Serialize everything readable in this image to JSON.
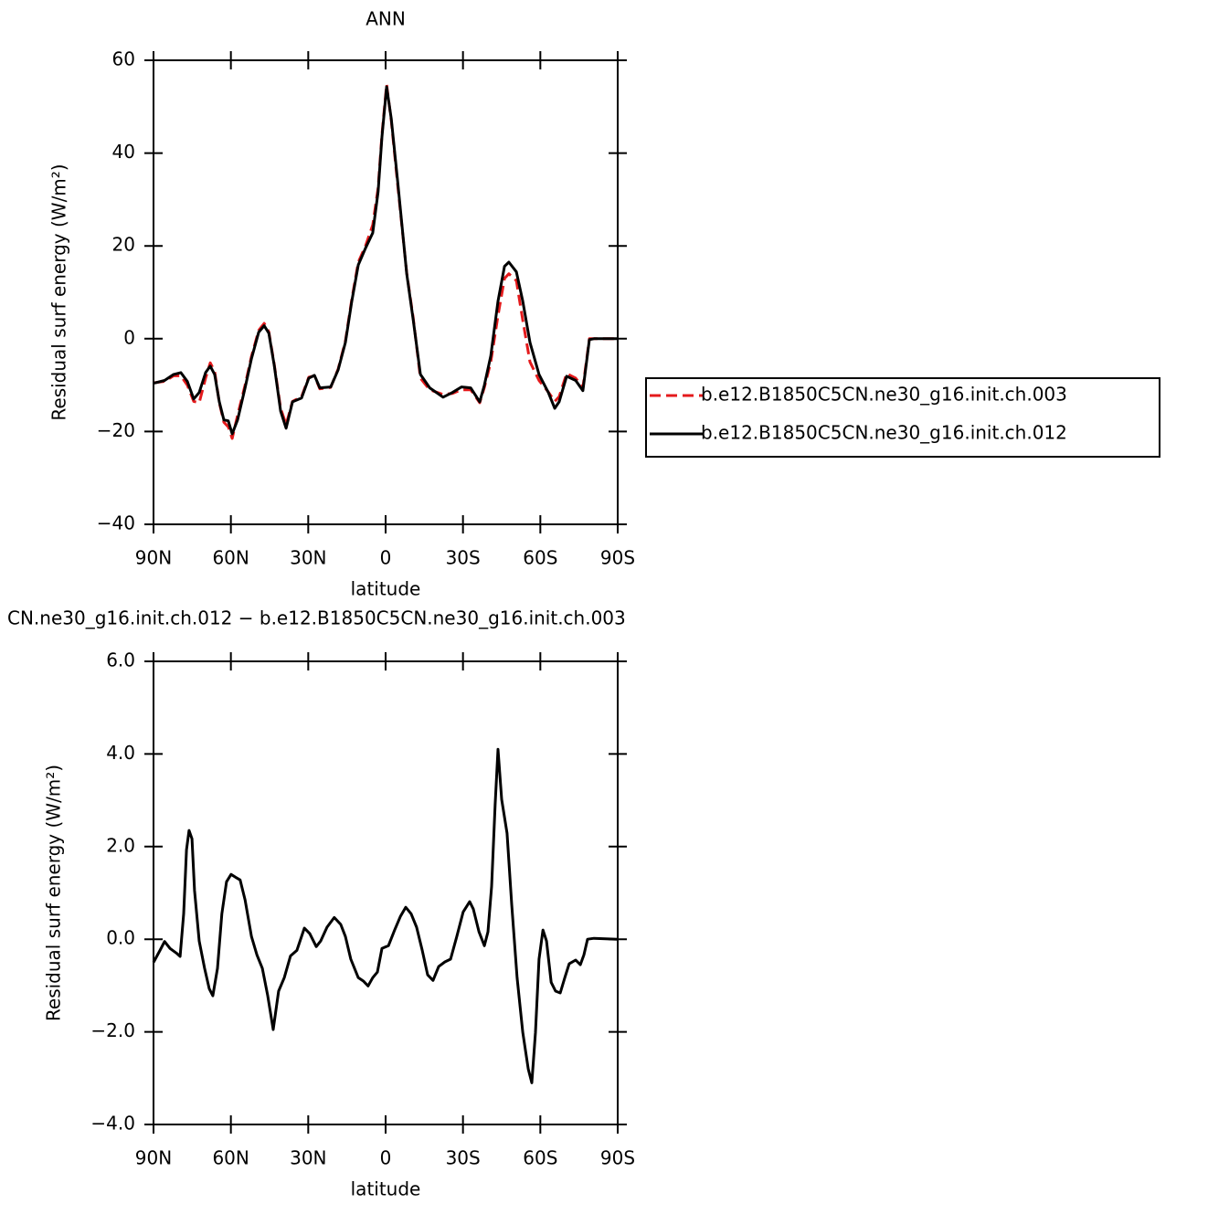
{
  "chart_data": [
    {
      "type": "line",
      "title": "ANN",
      "xlabel": "latitude",
      "ylabel": "Residual surf energy (W/m²)",
      "x": [
        90,
        85.7,
        82.2,
        79.4,
        76.9,
        74.4,
        72.3,
        69.8,
        68,
        66.3,
        64.5,
        62.7,
        61,
        59.5,
        57.4,
        54.5,
        52,
        49.2,
        47.1,
        45.3,
        43.2,
        40.7,
        38.6,
        36.1,
        32.6,
        29.8,
        27.6,
        25.5,
        21.3,
        18.4,
        15.6,
        13.1,
        10.6,
        7.8,
        5,
        2.9,
        1.4,
        -0.4,
        -2.2,
        -4.7,
        -8.2,
        -10.7,
        -13.5,
        -17.1,
        -22.3,
        -25.9,
        -29.4,
        -33,
        -36.5,
        -38.3,
        -40.8,
        -43.6,
        -46.1,
        -47.8,
        -50.7,
        -53.2,
        -56,
        -59.5,
        -63.1,
        -65.6,
        -67.3,
        -70.2,
        -73.7,
        -76.5,
        -79,
        -80.8,
        -90
      ],
      "series": [
        {
          "name": "b.e12.B1850C5CN.ne30_g16.init.ch.003",
          "color": "#e41a1c",
          "dashed": true,
          "values": [
            -9.5,
            -9.2,
            -8,
            -8,
            -10,
            -13.5,
            -13.8,
            -8.5,
            -5.2,
            -7,
            -13.8,
            -18,
            -19,
            -21.5,
            -16.5,
            -10,
            -3.8,
            1.8,
            3.3,
            1.5,
            -5.5,
            -15,
            -18.5,
            -13.5,
            -12.5,
            -8.3,
            -8,
            -10.8,
            -10.5,
            -6.5,
            -0.5,
            8.5,
            16.5,
            20,
            24.5,
            32.5,
            44,
            54.8,
            47,
            33,
            14.2,
            4.5,
            -8.5,
            -11,
            -12,
            -11.8,
            -11,
            -11,
            -13.8,
            -10.5,
            -5,
            5,
            13,
            14,
            12.5,
            4,
            -5,
            -9,
            -11.5,
            -13.5,
            -12.5,
            -7.5,
            -8.5,
            -10.5,
            0,
            0,
            0
          ]
        },
        {
          "name": "b.e12.B1850C5CN.ne30_g16.init.ch.012",
          "color": "#000000",
          "dashed": false,
          "values": [
            -9.6,
            -9,
            -7.7,
            -7.3,
            -9.2,
            -13,
            -11.6,
            -7.3,
            -5.9,
            -7.7,
            -13.6,
            -17.5,
            -17.7,
            -20.5,
            -17.5,
            -10.6,
            -4.3,
            1.4,
            2.8,
            1.2,
            -5.7,
            -15.6,
            -19.3,
            -13.6,
            -12.8,
            -8.5,
            -7.9,
            -10.6,
            -10.4,
            -6.7,
            -0.8,
            8.1,
            15.9,
            19.5,
            22.8,
            31.7,
            43.5,
            54.3,
            47.4,
            33.7,
            14,
            4.1,
            -7.7,
            -10.6,
            -12.6,
            -11.6,
            -10.4,
            -10.6,
            -13.6,
            -10,
            -3.7,
            8.1,
            15.6,
            16.5,
            14.4,
            8.1,
            -0.8,
            -7.7,
            -11.6,
            -15,
            -13.6,
            -8.1,
            -9,
            -11.2,
            -0.2,
            0,
            0
          ]
        }
      ],
      "xlim": [
        90,
        -90
      ],
      "xticks": [
        {
          "value": 90,
          "label": "90N"
        },
        {
          "value": 60,
          "label": "60N"
        },
        {
          "value": 30,
          "label": "30N"
        },
        0,
        {
          "value": -30,
          "label": "30S"
        },
        {
          "value": -60,
          "label": "60S"
        },
        {
          "value": -90,
          "label": "90S"
        }
      ],
      "ylim": [
        -40,
        60
      ],
      "yticks": [
        {
          "value": -40,
          "label": "−40"
        },
        {
          "value": -20,
          "label": "−20"
        },
        0,
        20,
        40,
        60
      ],
      "legend": "right"
    },
    {
      "type": "line",
      "title": "CN.ne30_g16.init.ch.012 − b.e12.B1850C5CN.ne30_g16.init.ch.003",
      "xlabel": "latitude",
      "ylabel": "Residual surf energy (W/m²)",
      "x": [
        90,
        87.5,
        85.7,
        83.6,
        81.1,
        79.7,
        78.3,
        77.2,
        76.2,
        75.1,
        74.1,
        72.3,
        70.2,
        68.4,
        67,
        65.2,
        63.5,
        61.7,
        59.9,
        58.2,
        56.4,
        54.5,
        52,
        49.9,
        47.8,
        45.7,
        43.6,
        41.5,
        39.3,
        36.9,
        34.4,
        31.5,
        29.4,
        26.9,
        25.2,
        22.7,
        19.9,
        17.4,
        15.6,
        13.5,
        10.6,
        8.5,
        6.8,
        5,
        3.2,
        1.4,
        -1.1,
        -3.5,
        -5.7,
        -7.8,
        -9.9,
        -12,
        -14.2,
        -16.3,
        -18.4,
        -20.6,
        -23,
        -25.2,
        -27.6,
        -30.1,
        -32.6,
        -34,
        -36.2,
        -38.3,
        -39.7,
        -41.1,
        -42.5,
        -43.6,
        -45,
        -47.1,
        -48.9,
        -51,
        -53.2,
        -55.3,
        -56.7,
        -58.1,
        -59.5,
        -61,
        -62.4,
        -64.2,
        -65.9,
        -67.7,
        -69.5,
        -71.2,
        -73.7,
        -75.5,
        -76.9,
        -78.3,
        -80.8,
        -90
      ],
      "values": [
        -0.5,
        -0.24,
        -0.05,
        -0.2,
        -0.3,
        -0.37,
        0.55,
        1.93,
        2.35,
        2.17,
        1.05,
        -0.04,
        -0.63,
        -1.07,
        -1.22,
        -0.63,
        0.55,
        1.24,
        1.4,
        1.34,
        1.28,
        0.85,
        0.06,
        -0.34,
        -0.63,
        -1.22,
        -1.95,
        -1.12,
        -0.83,
        -0.36,
        -0.24,
        0.24,
        0.12,
        -0.16,
        -0.04,
        0.26,
        0.47,
        0.32,
        0.06,
        -0.43,
        -0.83,
        -0.91,
        -1.01,
        -0.83,
        -0.71,
        -0.2,
        -0.14,
        0.2,
        0.49,
        0.69,
        0.55,
        0.26,
        -0.24,
        -0.77,
        -0.89,
        -0.59,
        -0.49,
        -0.43,
        0.06,
        0.59,
        0.81,
        0.65,
        0.16,
        -0.14,
        0.16,
        1.14,
        2.92,
        4.1,
        3.02,
        2.29,
        0.75,
        -0.83,
        -2.01,
        -2.8,
        -3.1,
        -2.01,
        -0.43,
        0.2,
        -0.04,
        -0.93,
        -1.12,
        -1.16,
        -0.83,
        -0.53,
        -0.45,
        -0.55,
        -0.34,
        0,
        0.02,
        0
      ],
      "color": "#000000",
      "xlim": [
        90,
        -90
      ],
      "xticks": [
        {
          "value": 90,
          "label": "90N"
        },
        {
          "value": 60,
          "label": "60N"
        },
        {
          "value": 30,
          "label": "30N"
        },
        0,
        {
          "value": -30,
          "label": "30S"
        },
        {
          "value": -60,
          "label": "60S"
        },
        {
          "value": -90,
          "label": "90S"
        }
      ],
      "ylim": [
        -4,
        6
      ],
      "yticks": [
        {
          "value": -4,
          "label": "−4.0"
        },
        {
          "value": -2,
          "label": "−2.0"
        },
        {
          "value": 0,
          "label": "0.0"
        },
        {
          "value": 2,
          "label": "2.0"
        },
        {
          "value": 4,
          "label": "4.0"
        },
        {
          "value": 6,
          "label": "6.0"
        }
      ]
    }
  ]
}
